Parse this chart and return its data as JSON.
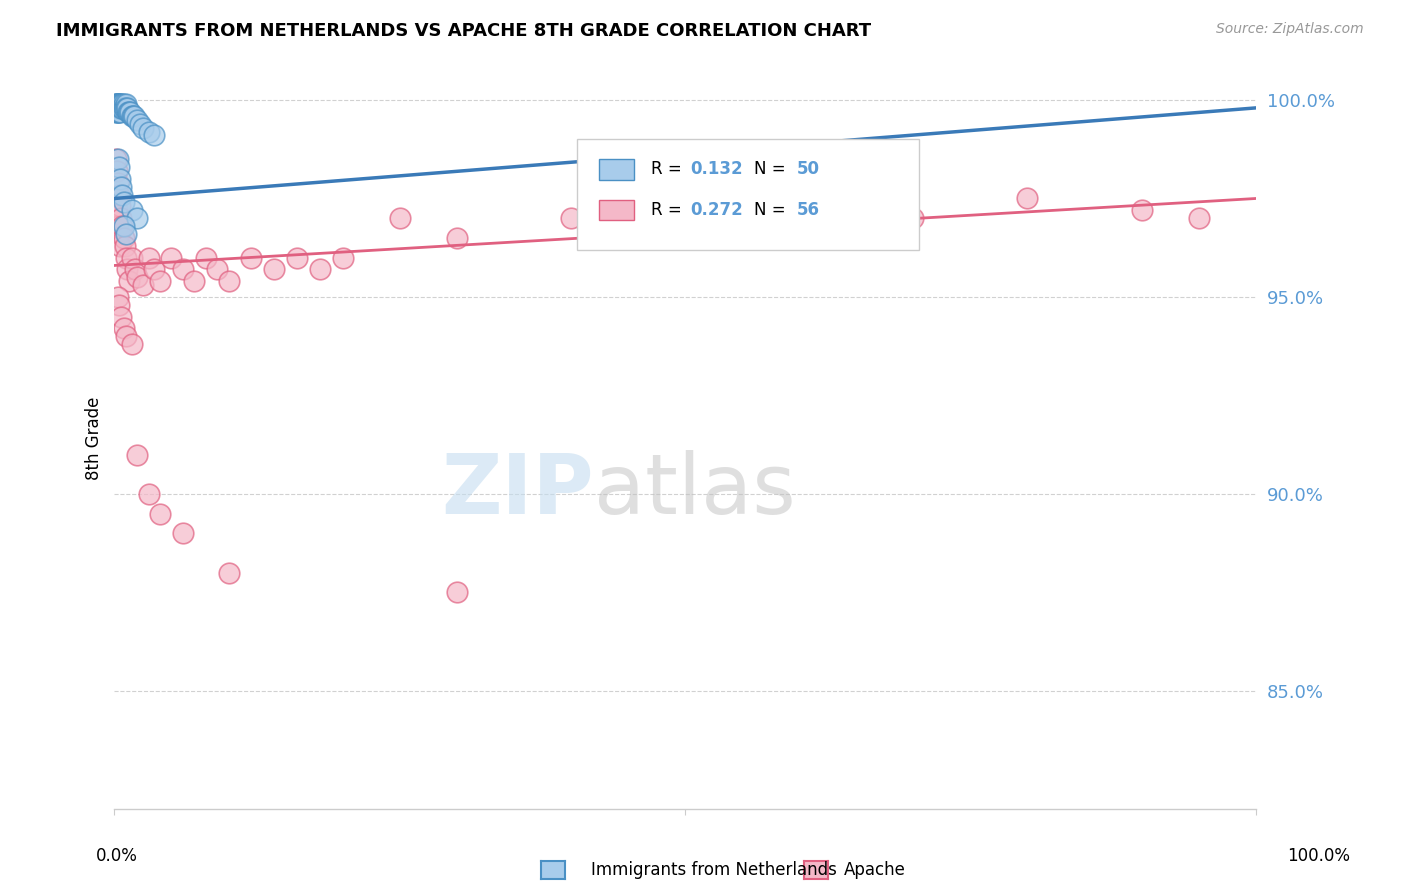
{
  "title": "IMMIGRANTS FROM NETHERLANDS VS APACHE 8TH GRADE CORRELATION CHART",
  "source": "Source: ZipAtlas.com",
  "ylabel": "8th Grade",
  "y_tick_labels": [
    "85.0%",
    "90.0%",
    "95.0%",
    "100.0%"
  ],
  "y_tick_values": [
    0.85,
    0.9,
    0.95,
    1.0
  ],
  "legend_label1": "Immigrants from Netherlands",
  "legend_label2": "Apache",
  "legend_r1": "R = 0.132",
  "legend_n1": "N = 50",
  "legend_r2": "R = 0.272",
  "legend_n2": "N = 56",
  "blue_face_color": "#a8cceb",
  "blue_edge_color": "#4a90c4",
  "pink_face_color": "#f4b8c8",
  "pink_edge_color": "#e06080",
  "blue_line_color": "#3a7ab8",
  "pink_line_color": "#e06080",
  "blue_legend_face": "#a8cceb",
  "pink_legend_face": "#f4b8c8",
  "legend_text_color": "#4a90c4",
  "legend_rn_color": "#5b9bd5",
  "background_color": "#ffffff",
  "grid_color": "#cccccc",
  "y_min": 0.82,
  "y_max": 1.008,
  "x_min": 0.0,
  "x_max": 1.0,
  "blue_trend_x0": 0.0,
  "blue_trend_x1": 1.0,
  "blue_trend_y0": 0.975,
  "blue_trend_y1": 0.998,
  "pink_trend_x0": 0.0,
  "pink_trend_x1": 1.0,
  "pink_trend_y0": 0.958,
  "pink_trend_y1": 0.975,
  "watermark_zip_color": "#c5ddf0",
  "watermark_atlas_color": "#c0c0c0",
  "blue_scatter_x": [
    0.001,
    0.001,
    0.001,
    0.001,
    0.001,
    0.002,
    0.002,
    0.002,
    0.002,
    0.003,
    0.003,
    0.003,
    0.003,
    0.004,
    0.004,
    0.004,
    0.005,
    0.005,
    0.005,
    0.006,
    0.006,
    0.007,
    0.007,
    0.008,
    0.008,
    0.009,
    0.01,
    0.01,
    0.011,
    0.012,
    0.013,
    0.014,
    0.015,
    0.016,
    0.017,
    0.02,
    0.022,
    0.025,
    0.03,
    0.035,
    0.003,
    0.004,
    0.005,
    0.006,
    0.007,
    0.008,
    0.015,
    0.02,
    0.008,
    0.01
  ],
  "blue_scatter_y": [
    0.999,
    0.998,
    0.997,
    0.999,
    0.998,
    0.999,
    0.998,
    0.997,
    0.999,
    0.999,
    0.998,
    0.997,
    0.999,
    0.999,
    0.998,
    0.997,
    0.999,
    0.998,
    0.997,
    0.999,
    0.998,
    0.999,
    0.998,
    0.999,
    0.998,
    0.998,
    0.999,
    0.998,
    0.998,
    0.997,
    0.997,
    0.997,
    0.996,
    0.996,
    0.996,
    0.995,
    0.994,
    0.993,
    0.992,
    0.991,
    0.985,
    0.983,
    0.98,
    0.978,
    0.976,
    0.974,
    0.972,
    0.97,
    0.968,
    0.966
  ],
  "pink_scatter_x": [
    0.001,
    0.001,
    0.002,
    0.002,
    0.003,
    0.003,
    0.004,
    0.004,
    0.005,
    0.005,
    0.006,
    0.007,
    0.008,
    0.009,
    0.01,
    0.011,
    0.013,
    0.015,
    0.018,
    0.02,
    0.025,
    0.03,
    0.035,
    0.04,
    0.05,
    0.06,
    0.07,
    0.08,
    0.09,
    0.1,
    0.12,
    0.14,
    0.16,
    0.18,
    0.2,
    0.25,
    0.3,
    0.4,
    0.5,
    0.6,
    0.7,
    0.8,
    0.9,
    0.95,
    0.003,
    0.004,
    0.006,
    0.008,
    0.01,
    0.015,
    0.02,
    0.03,
    0.04,
    0.06,
    0.1,
    0.3
  ],
  "pink_scatter_y": [
    0.985,
    0.975,
    0.982,
    0.972,
    0.979,
    0.968,
    0.976,
    0.966,
    0.973,
    0.963,
    0.97,
    0.968,
    0.965,
    0.963,
    0.96,
    0.957,
    0.954,
    0.96,
    0.957,
    0.955,
    0.953,
    0.96,
    0.957,
    0.954,
    0.96,
    0.957,
    0.954,
    0.96,
    0.957,
    0.954,
    0.96,
    0.957,
    0.96,
    0.957,
    0.96,
    0.97,
    0.965,
    0.97,
    0.968,
    0.972,
    0.97,
    0.975,
    0.972,
    0.97,
    0.95,
    0.948,
    0.945,
    0.942,
    0.94,
    0.938,
    0.91,
    0.9,
    0.895,
    0.89,
    0.88,
    0.875
  ]
}
